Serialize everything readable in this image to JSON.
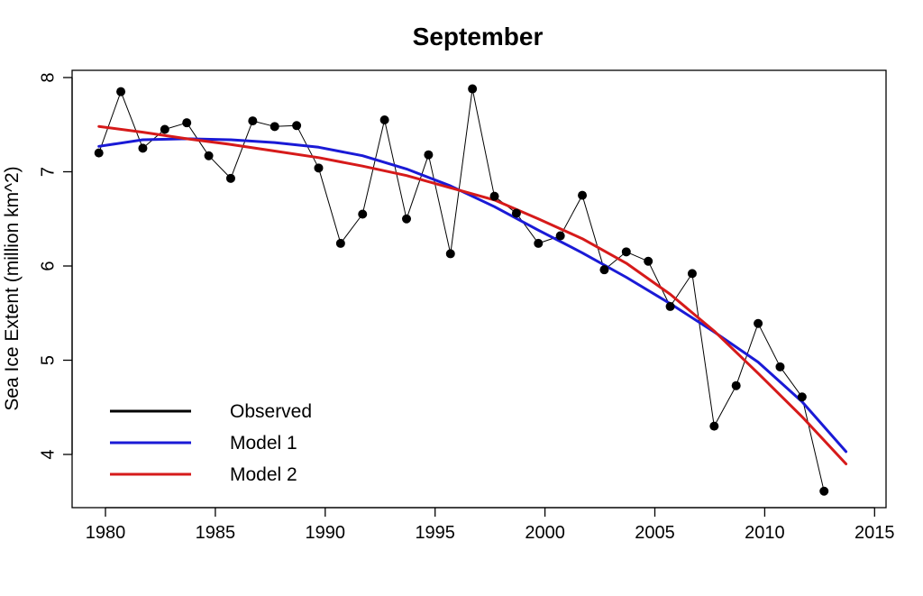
{
  "chart_data": {
    "type": "line",
    "title": "September",
    "xlabel": "",
    "ylabel": "Sea Ice Extent (million km^2)",
    "xlim": [
      1979.5,
      2014
    ],
    "ylim": [
      3.45,
      8.05
    ],
    "x_ticks": [
      1980,
      1985,
      1990,
      1995,
      2000,
      2005,
      2010,
      2015
    ],
    "y_ticks": [
      4,
      5,
      6,
      7,
      8
    ],
    "grid": false,
    "legend_position": "bottom-left",
    "legend": [
      "Observed",
      "Model 1",
      "Model 2"
    ],
    "series": [
      {
        "name": "Observed",
        "color": "#000000",
        "x": [
          1979.7,
          1980.7,
          1981.7,
          1982.7,
          1983.7,
          1984.7,
          1985.7,
          1986.7,
          1987.7,
          1988.7,
          1989.7,
          1990.7,
          1991.7,
          1992.7,
          1993.7,
          1994.7,
          1995.7,
          1996.7,
          1997.7,
          1998.7,
          1999.7,
          2000.7,
          2001.7,
          2002.7,
          2003.7,
          2004.7,
          2005.7,
          2006.7,
          2007.7,
          2008.7,
          2009.7,
          2010.7,
          2011.7,
          2012.7
        ],
        "values": [
          7.2,
          7.85,
          7.25,
          7.45,
          7.52,
          7.17,
          6.93,
          7.54,
          7.48,
          7.49,
          7.04,
          6.24,
          6.55,
          7.55,
          6.5,
          7.18,
          6.13,
          7.88,
          6.74,
          6.56,
          6.24,
          6.32,
          6.75,
          5.96,
          6.15,
          6.05,
          5.57,
          5.92,
          4.3,
          4.73,
          5.39,
          4.93,
          4.61,
          3.61
        ]
      },
      {
        "name": "Model 1",
        "color": "#1a1ad6",
        "x": [
          1979.7,
          1981.7,
          1983.7,
          1985.7,
          1987.7,
          1989.7,
          1991.7,
          1993.7,
          1995.7,
          1997.7,
          1999.7,
          2001.7,
          2003.7,
          2005.7,
          2007.7,
          2009.7,
          2011.7,
          2013.7
        ],
        "values": [
          7.27,
          7.34,
          7.35,
          7.34,
          7.31,
          7.26,
          7.17,
          7.03,
          6.85,
          6.63,
          6.38,
          6.14,
          5.88,
          5.6,
          5.3,
          4.98,
          4.56,
          4.03
        ]
      },
      {
        "name": "Model 2",
        "color": "#d61a1a",
        "x": [
          1979.7,
          1981.7,
          1983.7,
          1985.7,
          1987.7,
          1989.7,
          1991.7,
          1993.7,
          1995.7,
          1997.7,
          1999.7,
          2001.7,
          2003.7,
          2005.7,
          2007.7,
          2009.7,
          2011.7,
          2013.7
        ],
        "values": [
          7.48,
          7.42,
          7.35,
          7.29,
          7.22,
          7.15,
          7.06,
          6.96,
          6.83,
          6.7,
          6.5,
          6.29,
          6.03,
          5.7,
          5.31,
          4.86,
          4.4,
          3.9
        ]
      }
    ]
  }
}
